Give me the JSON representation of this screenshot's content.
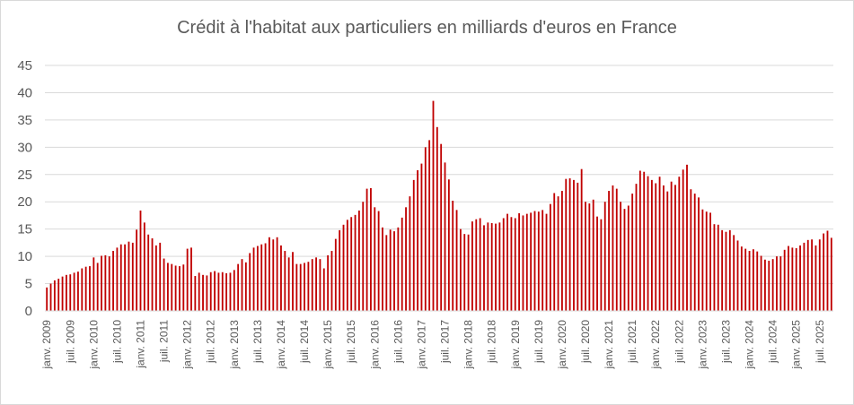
{
  "chart_data": {
    "type": "bar",
    "title": "Crédit à l'habitat aux particuliers en milliards d'euros en France",
    "xlabel": "",
    "ylabel": "",
    "ylim": [
      0,
      45
    ],
    "yticks": [
      0,
      5,
      10,
      15,
      20,
      25,
      30,
      35,
      40,
      45
    ],
    "grid": true,
    "legend": "none",
    "bar_color": "#c00000",
    "grid_color": "#d9d9d9",
    "start_month": "janv. 2009",
    "tick_labels": [
      {
        "index": 0,
        "label": "janv. 2009"
      },
      {
        "index": 6,
        "label": "juil. 2009"
      },
      {
        "index": 12,
        "label": "janv. 2010"
      },
      {
        "index": 18,
        "label": "juil. 2010"
      },
      {
        "index": 24,
        "label": "janv. 2011"
      },
      {
        "index": 30,
        "label": "juil. 2011"
      },
      {
        "index": 36,
        "label": "janv. 2012"
      },
      {
        "index": 42,
        "label": "juil. 2012"
      },
      {
        "index": 48,
        "label": "janv. 2013"
      },
      {
        "index": 54,
        "label": "juil. 2013"
      },
      {
        "index": 60,
        "label": "janv. 2014"
      },
      {
        "index": 66,
        "label": "juil. 2014"
      },
      {
        "index": 72,
        "label": "janv. 2015"
      },
      {
        "index": 78,
        "label": "juil. 2015"
      },
      {
        "index": 84,
        "label": "janv. 2016"
      },
      {
        "index": 90,
        "label": "juil. 2016"
      },
      {
        "index": 96,
        "label": "janv. 2017"
      },
      {
        "index": 102,
        "label": "juil. 2017"
      },
      {
        "index": 108,
        "label": "janv. 2018"
      },
      {
        "index": 114,
        "label": "juil. 2018"
      },
      {
        "index": 120,
        "label": "janv. 2019"
      },
      {
        "index": 126,
        "label": "juil. 2019"
      },
      {
        "index": 132,
        "label": "janv. 2020"
      },
      {
        "index": 138,
        "label": "juil. 2020"
      },
      {
        "index": 144,
        "label": "janv. 2021"
      },
      {
        "index": 150,
        "label": "juil. 2021"
      },
      {
        "index": 156,
        "label": "janv. 2022"
      },
      {
        "index": 162,
        "label": "juil. 2022"
      },
      {
        "index": 168,
        "label": "janv. 2023"
      },
      {
        "index": 174,
        "label": "juil. 2023"
      },
      {
        "index": 180,
        "label": "janv. 2024"
      },
      {
        "index": 186,
        "label": "juil. 2024"
      },
      {
        "index": 192,
        "label": "janv. 2025"
      },
      {
        "index": 198,
        "label": "juil. 2025"
      }
    ],
    "values": [
      4.3,
      5.0,
      5.6,
      5.9,
      6.3,
      6.6,
      6.7,
      7.0,
      7.2,
      7.8,
      8.1,
      8.2,
      9.8,
      8.8,
      10.1,
      10.2,
      10.0,
      11.0,
      11.6,
      12.2,
      12.2,
      12.7,
      12.5,
      14.9,
      18.4,
      16.2,
      14.0,
      13.3,
      12.0,
      12.5,
      9.6,
      8.8,
      8.6,
      8.3,
      8.2,
      8.5,
      11.4,
      11.6,
      6.4,
      7.0,
      6.6,
      6.5,
      7.1,
      7.3,
      7.0,
      7.1,
      6.9,
      7.0,
      7.5,
      8.6,
      9.5,
      8.9,
      10.6,
      11.6,
      11.9,
      12.2,
      12.4,
      13.5,
      13.1,
      13.5,
      12.0,
      11.0,
      9.8,
      10.8,
      8.6,
      8.6,
      8.8,
      9.0,
      9.5,
      9.8,
      9.5,
      7.8,
      10.2,
      11.0,
      13.2,
      14.8,
      15.8,
      16.7,
      17.2,
      17.6,
      18.4,
      20.0,
      22.4,
      22.5,
      19.0,
      18.3,
      15.3,
      13.9,
      14.9,
      14.6,
      15.3,
      17.1,
      19.0,
      21.0,
      24.0,
      25.8,
      27.0,
      30.0,
      31.3,
      38.5,
      33.7,
      30.6,
      27.2,
      24.1,
      20.2,
      18.5,
      15.0,
      14.1,
      14.0,
      16.4,
      16.8,
      17.0,
      15.7,
      16.2,
      16.1,
      16.0,
      16.2,
      17.0,
      17.8,
      17.2,
      17.0,
      17.9,
      17.5,
      17.8,
      18.0,
      18.3,
      18.2,
      18.5,
      17.8,
      19.6,
      21.6,
      21.0,
      22.0,
      24.2,
      24.3,
      24.0,
      23.5,
      26.0,
      20.0,
      19.7,
      20.4,
      17.3,
      16.8,
      20.0,
      22.0,
      23.0,
      22.4,
      20.0,
      18.7,
      19.3,
      21.5,
      23.3,
      25.7,
      25.5,
      24.7,
      24.0,
      23.4,
      24.6,
      23.0,
      21.9,
      23.7,
      23.1,
      24.6,
      25.9,
      26.8,
      22.3,
      21.5,
      20.8,
      18.6,
      18.2,
      18.0,
      15.9,
      15.8,
      14.8,
      14.5,
      14.8,
      13.9,
      12.9,
      11.8,
      11.4,
      11.0,
      11.3,
      10.9,
      10.1,
      9.4,
      9.2,
      9.5,
      10.0,
      10.0,
      11.2,
      11.9,
      11.6,
      11.5,
      12.0,
      12.5,
      13.0,
      13.1,
      12.0,
      13.1,
      14.2,
      14.7,
      13.4
    ]
  }
}
